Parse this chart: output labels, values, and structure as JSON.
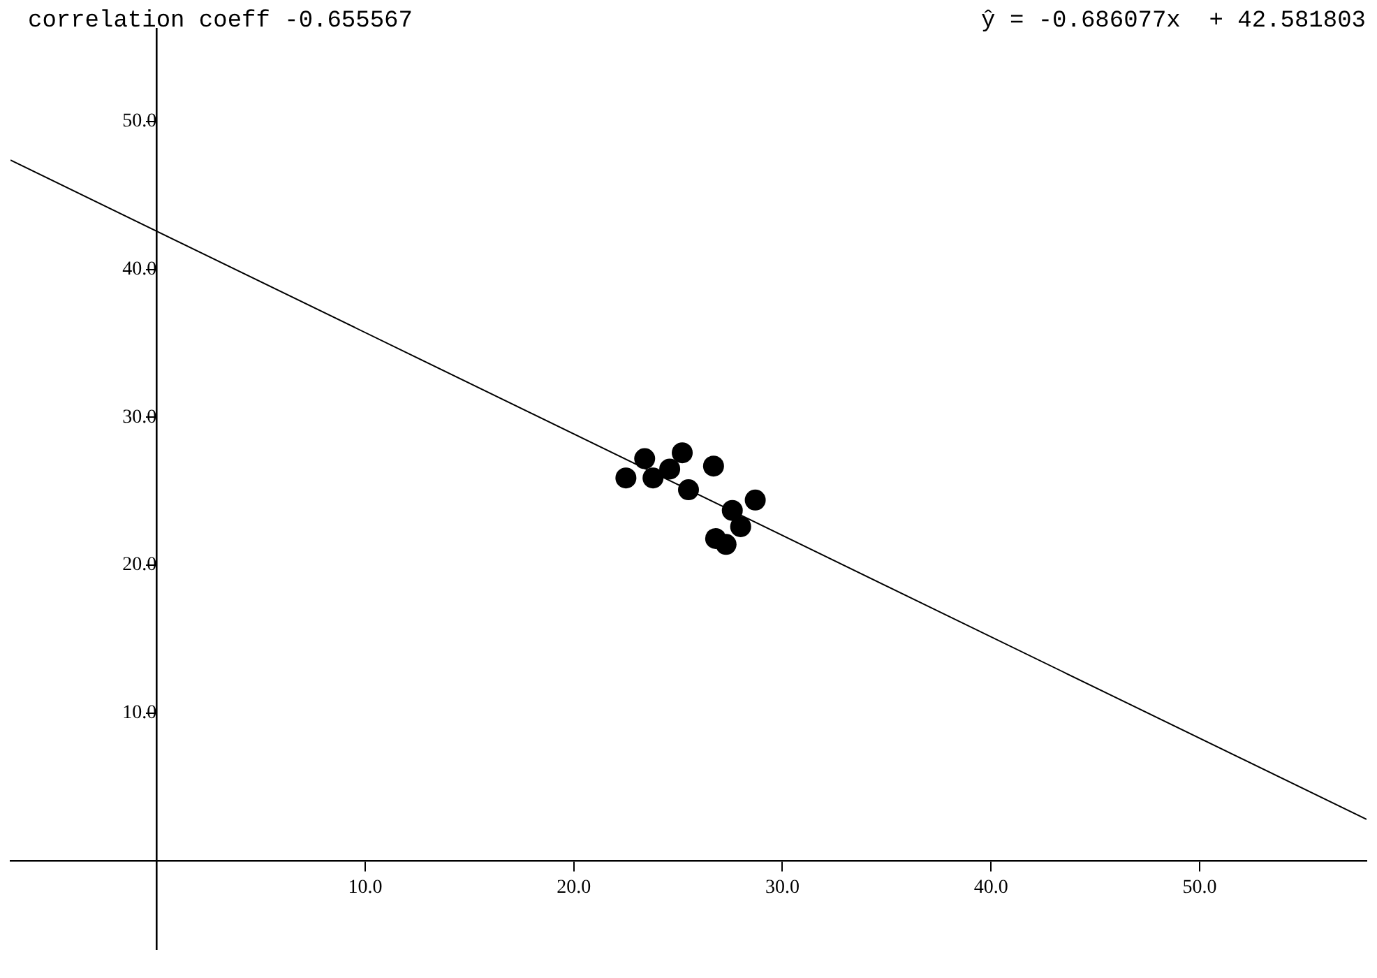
{
  "chart_data": {
    "type": "scatter",
    "annotations": [
      "correlation coeff -0.655567",
      "ŷ = -0.686077x  + 42.581803"
    ],
    "x": [
      22.5,
      23.4,
      23.8,
      24.6,
      25.2,
      25.5,
      26.7,
      27.6,
      28.7,
      28.0,
      26.8,
      27.3
    ],
    "series": [
      {
        "type": "scatter",
        "color": "#000000",
        "values": [
          25.9,
          27.2,
          25.9,
          26.5,
          27.6,
          25.1,
          26.7,
          23.7,
          24.4,
          22.6,
          21.8,
          21.4
        ]
      },
      {
        "type": "line",
        "color": "#000000",
        "marker": "none",
        "x": [
          -7,
          58
        ],
        "values": [
          47.4,
          2.8
        ]
      }
    ],
    "xlim": [
      -7,
      58
    ],
    "ylim": [
      -6,
      56.3
    ],
    "xticks": [
      {
        "value": 10,
        "label": "10.0"
      },
      {
        "value": 20,
        "label": "20.0"
      },
      {
        "value": 30,
        "label": "30.0"
      },
      {
        "value": 40,
        "label": "40.0"
      },
      {
        "value": 50,
        "label": "50.0"
      }
    ],
    "yticks": [
      {
        "value": 10,
        "label": "10.0"
      },
      {
        "value": 20,
        "label": "20.0"
      },
      {
        "value": 30,
        "label": "30.0"
      },
      {
        "value": 40,
        "label": "40.0"
      },
      {
        "value": 50,
        "label": "50.0"
      }
    ],
    "grid": false,
    "legend": false,
    "marker": "circle"
  }
}
